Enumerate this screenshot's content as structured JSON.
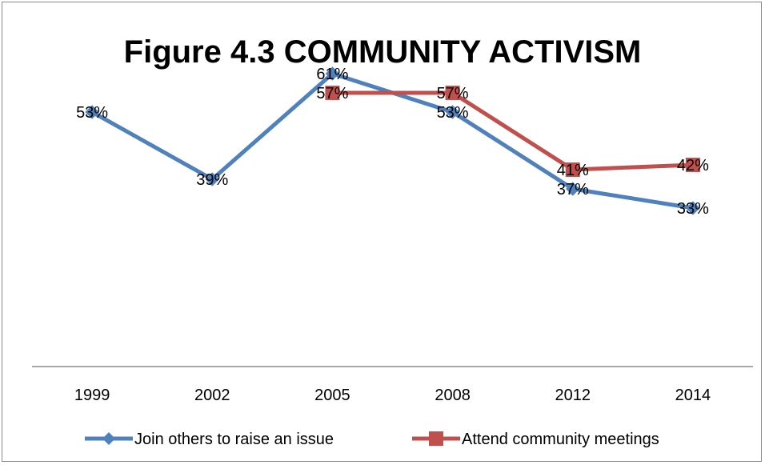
{
  "chart_data": {
    "type": "line",
    "title": "Figure 4.3 COMMUNITY ACTIVISM",
    "categories": [
      "1999",
      "2002",
      "2005",
      "2008",
      "2012",
      "2014"
    ],
    "series": [
      {
        "name": "Join others to raise an issue",
        "values": [
          53,
          39,
          61,
          53,
          37,
          33
        ],
        "labels": [
          "53%",
          "39%",
          "61%",
          "53%",
          "37%",
          "33%"
        ],
        "color": "#4f81bd",
        "marker": "diamond"
      },
      {
        "name": "Attend community meetings",
        "values": [
          null,
          null,
          57,
          57,
          41,
          42
        ],
        "labels": [
          "",
          "",
          "57%",
          "57%",
          "41%",
          "42%"
        ],
        "color": "#c0504d",
        "marker": "square"
      }
    ],
    "ylim": [
      0,
      70
    ],
    "grid": false,
    "legend": "bottom"
  }
}
